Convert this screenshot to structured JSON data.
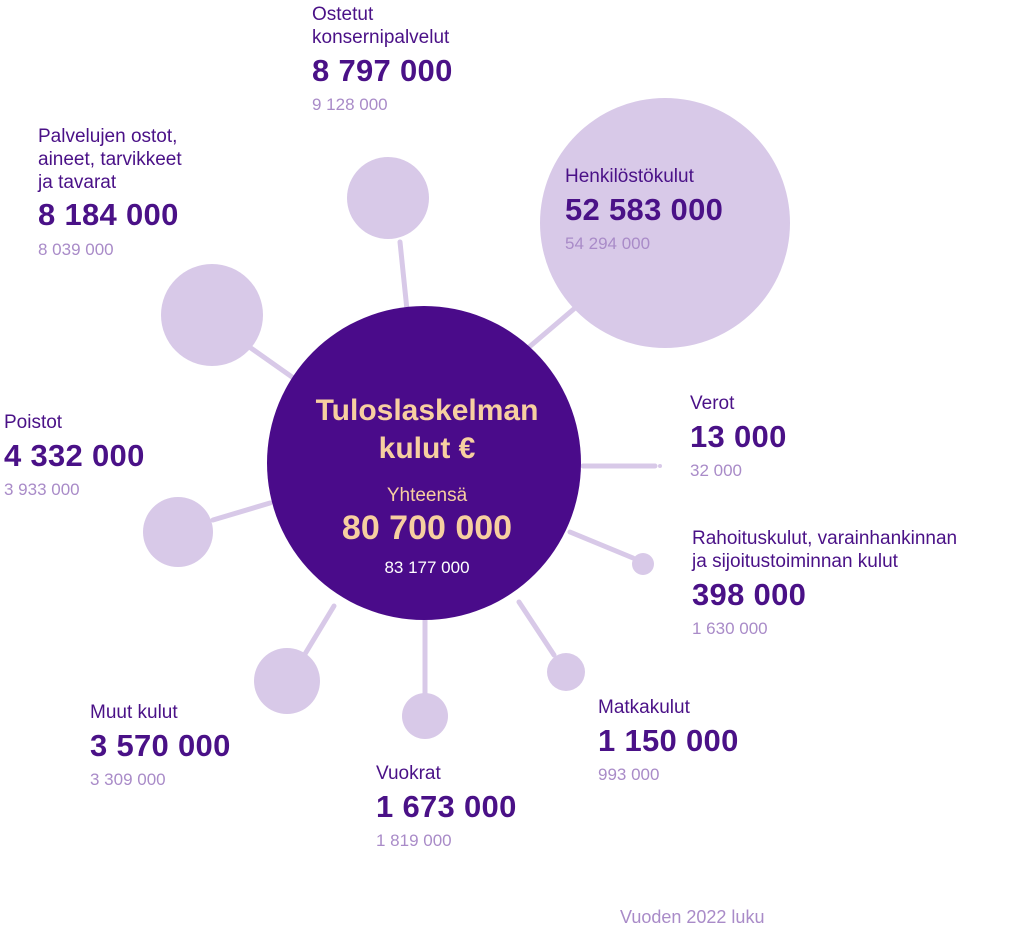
{
  "chart_data": {
    "type": "bubble",
    "center": {
      "title_line1": "Tuloslaskelman",
      "title_line2": "kulut €",
      "total_label": "Yhteensä",
      "total_value": "80 700 000",
      "total_prev": "83 177 000"
    },
    "categories": [
      {
        "key": "ostetut",
        "name_lines": [
          "Ostetut",
          "konsernipalvelut"
        ],
        "value": 8797000,
        "value_label": "8 797 000",
        "prev_value": 9128000,
        "prev_label": "9 128 000"
      },
      {
        "key": "henkilosto",
        "name_lines": [
          "Henkilöstökulut"
        ],
        "value": 52583000,
        "value_label": "52 583 000",
        "prev_value": 54294000,
        "prev_label": "54 294 000"
      },
      {
        "key": "palvelujen",
        "name_lines": [
          "Palvelujen ostot,",
          "aineet, tarvikkeet",
          "ja tavarat"
        ],
        "value": 8184000,
        "value_label": "8 184 000",
        "prev_value": 8039000,
        "prev_label": "8 039 000"
      },
      {
        "key": "poistot",
        "name_lines": [
          "Poistot"
        ],
        "value": 4332000,
        "value_label": "4 332 000",
        "prev_value": 3933000,
        "prev_label": "3 933 000"
      },
      {
        "key": "verot",
        "name_lines": [
          "Verot"
        ],
        "value": 13000,
        "value_label": "13 000",
        "prev_value": 32000,
        "prev_label": "32 000"
      },
      {
        "key": "rahoitus",
        "name_lines": [
          "Rahoituskulut, varainhankinnan",
          "ja sijoitustoiminnan kulut"
        ],
        "value": 398000,
        "value_label": "398 000",
        "prev_value": 1630000,
        "prev_label": "1 630 000"
      },
      {
        "key": "matka",
        "name_lines": [
          "Matkakulut"
        ],
        "value": 1150000,
        "value_label": "1 150 000",
        "prev_value": 993000,
        "prev_label": "993 000"
      },
      {
        "key": "vuokrat",
        "name_lines": [
          "Vuokrat"
        ],
        "value": 1673000,
        "value_label": "1 673 000",
        "prev_value": 1819000,
        "prev_label": "1 819 000"
      },
      {
        "key": "muut",
        "name_lines": [
          "Muut kulut"
        ],
        "value": 3570000,
        "value_label": "3 570 000",
        "prev_value": 3309000,
        "prev_label": "3 309 000"
      }
    ],
    "footnote": "Vuoden 2022 luku",
    "colors": {
      "center_fill": "#4a0b8a",
      "bubble_fill": "#d8c9e8",
      "connector": "#d8c9e8",
      "value_text": "#4a1187",
      "prev_text": "#a98bc8",
      "center_text": "#f7cfa0"
    }
  }
}
